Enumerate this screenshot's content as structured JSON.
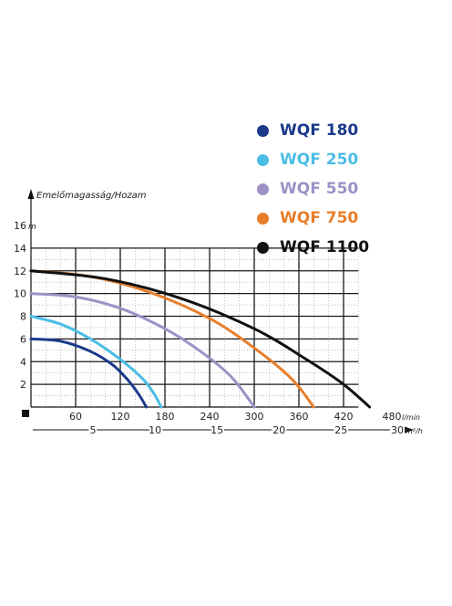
{
  "chart_data": {
    "type": "line",
    "ylabel": "Emelőmagasság/Hozam",
    "y_unit": "m",
    "x_unit": "l/min",
    "x2_unit": "m³/h",
    "ylim": [
      0,
      16
    ],
    "xlim": [
      0,
      480
    ],
    "y_ticks": [
      "2",
      "4",
      "6",
      "8",
      "10",
      "12",
      "14",
      "16"
    ],
    "x_ticks": [
      "60",
      "120",
      "180",
      "240",
      "300",
      "360",
      "420",
      "480"
    ],
    "x2_ticks": [
      "5",
      "10",
      "15",
      "20",
      "25",
      "30"
    ],
    "grid": true,
    "legend_position": "top-right",
    "series": [
      {
        "name": "WQF 180",
        "color": "#1b3a8a",
        "x": [
          0,
          40,
          80,
          110,
          130,
          145,
          155
        ],
        "y": [
          6.0,
          5.8,
          4.9,
          3.7,
          2.4,
          1.1,
          0.0
        ]
      },
      {
        "name": "WQF 250",
        "color": "#4bbde6",
        "x": [
          0,
          40,
          80,
          120,
          150,
          165,
          175
        ],
        "y": [
          8.0,
          7.3,
          6.0,
          4.2,
          2.5,
          1.2,
          0.0
        ]
      },
      {
        "name": "WQF 550",
        "color": "#9d91c6",
        "x": [
          0,
          60,
          120,
          180,
          230,
          270,
          300
        ],
        "y": [
          10.0,
          9.7,
          8.7,
          6.9,
          4.8,
          2.6,
          0.0
        ]
      },
      {
        "name": "WQF 750",
        "color": "#e87e2a",
        "x": [
          0,
          80,
          160,
          240,
          300,
          350,
          380
        ],
        "y": [
          12.0,
          11.5,
          10.1,
          7.8,
          5.2,
          2.5,
          0.0
        ]
      },
      {
        "name": "WQF 1100",
        "color": "#111111",
        "x": [
          0,
          100,
          200,
          300,
          370,
          420,
          455
        ],
        "y": [
          12.0,
          11.3,
          9.6,
          6.9,
          4.2,
          2.0,
          0.0
        ]
      }
    ]
  }
}
